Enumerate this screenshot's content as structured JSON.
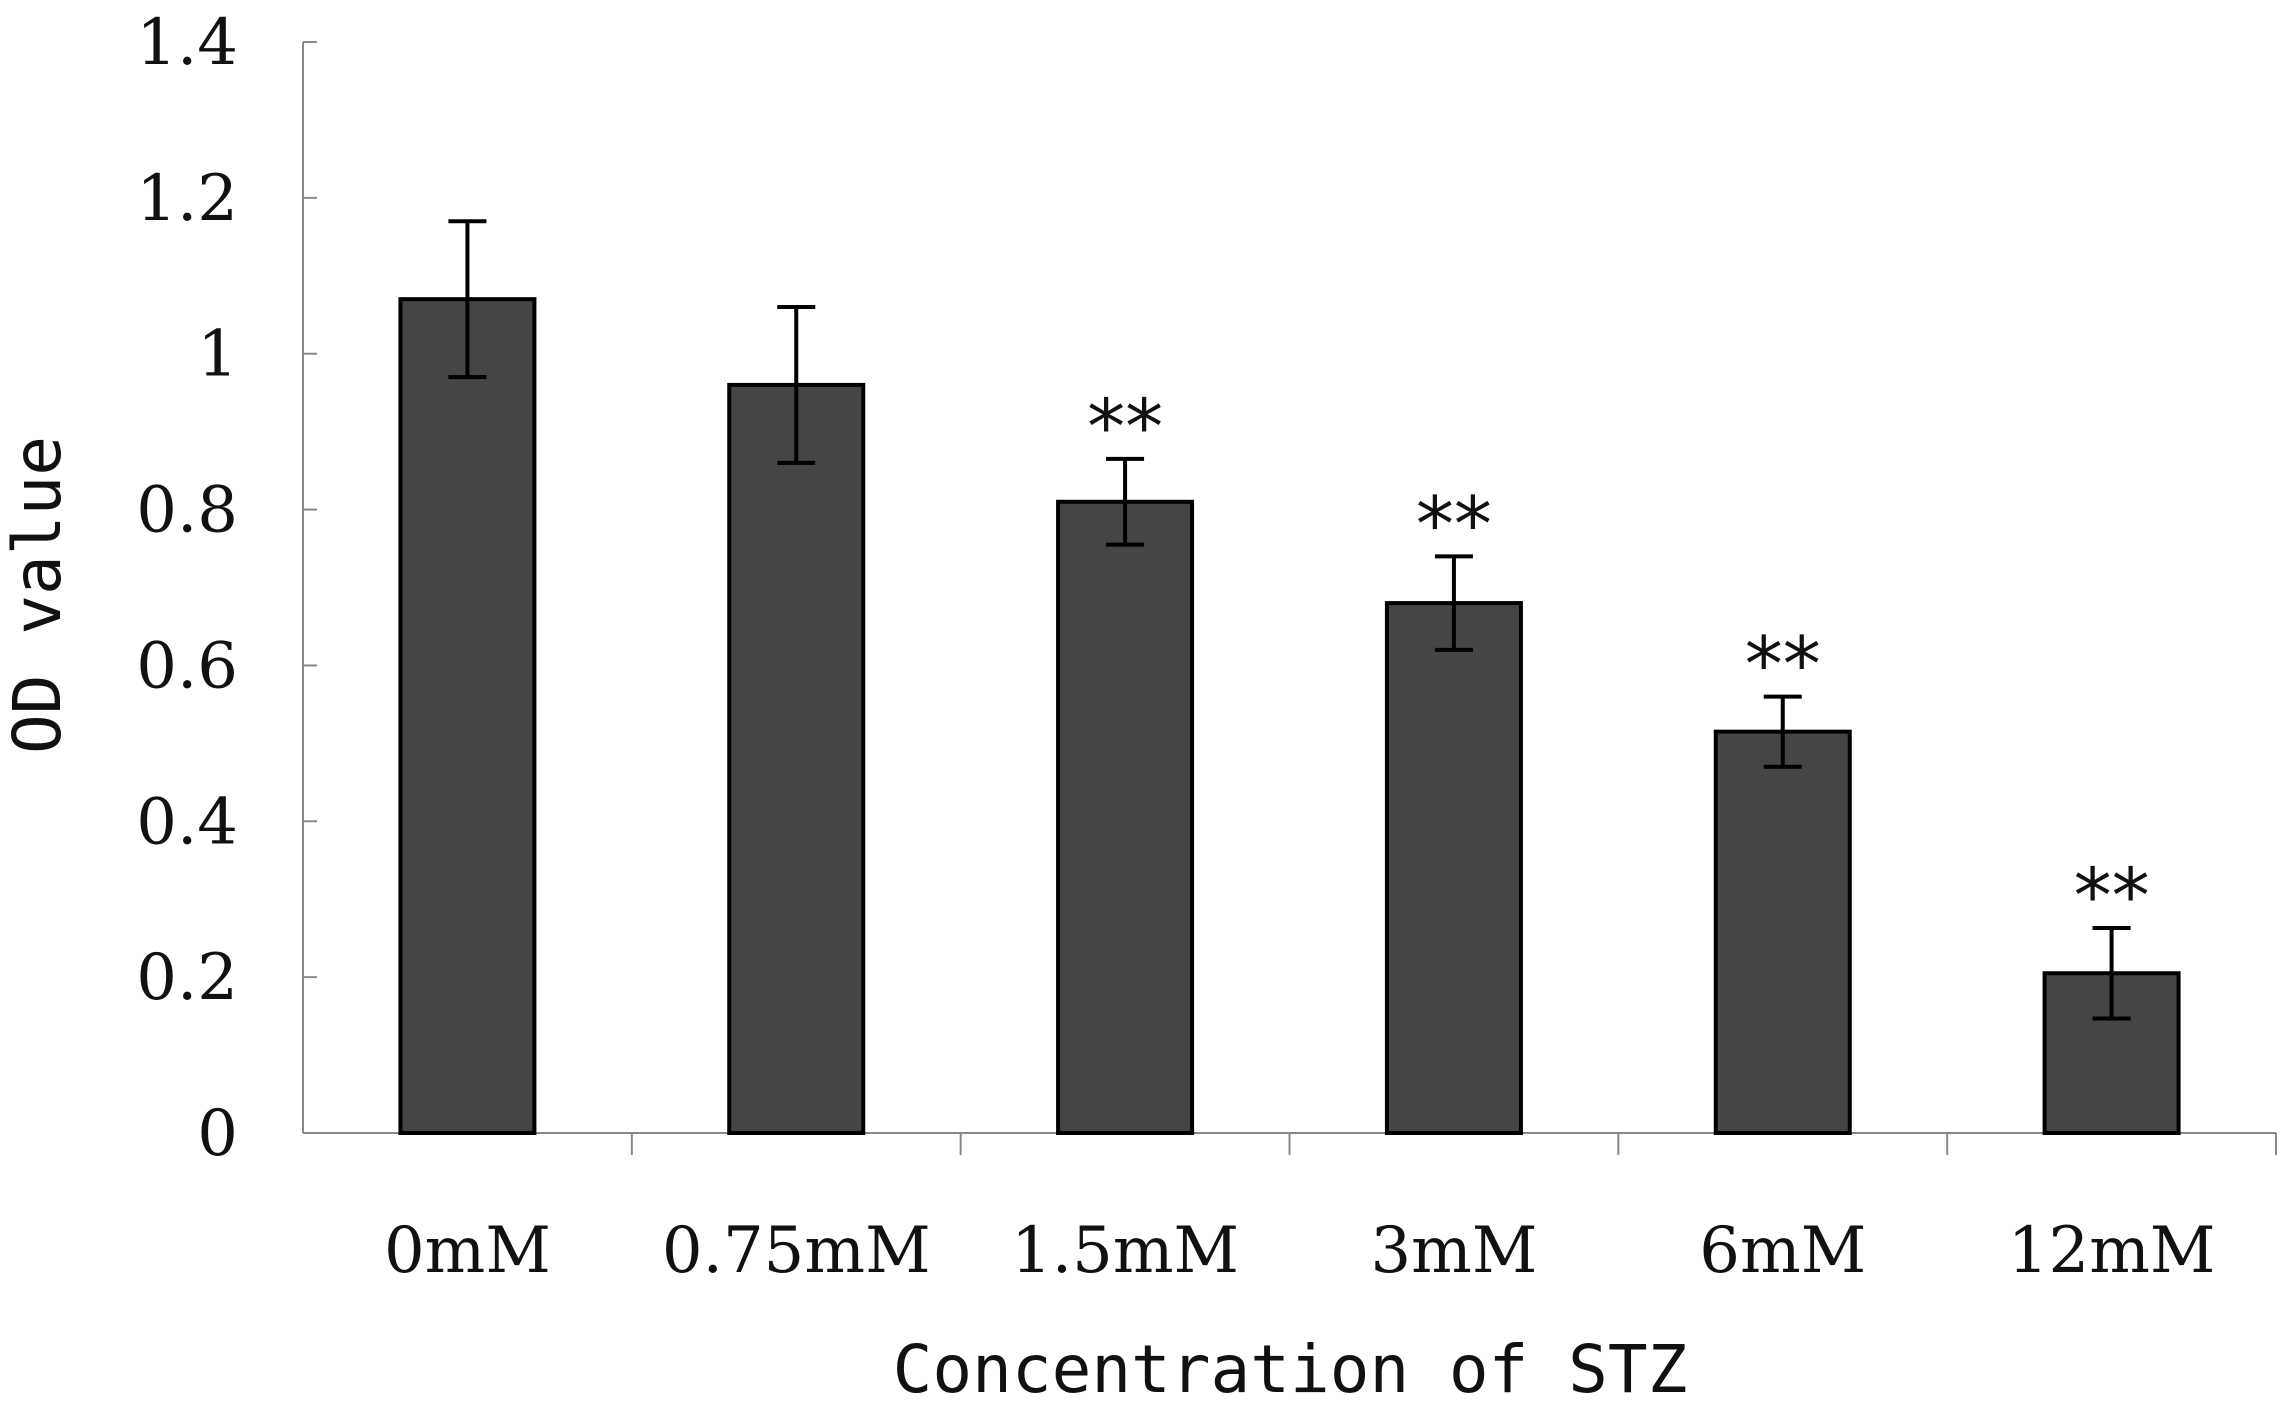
{
  "chart_data": {
    "type": "bar",
    "categories": [
      "0mM",
      "0.75mM",
      "1.5mM",
      "3mM",
      "6mM",
      "12mM"
    ],
    "series": [
      {
        "values": [
          1.07,
          0.96,
          0.81,
          0.68,
          0.515,
          0.205
        ],
        "errors": [
          0.1,
          0.1,
          0.055,
          0.06,
          0.045,
          0.058
        ],
        "annotations": [
          "",
          "",
          "**",
          "**",
          "**",
          "**"
        ]
      }
    ],
    "xlabel": "Concentration of STZ",
    "ylabel": "OD value",
    "ylim": [
      0,
      1.4
    ],
    "yticks": [
      "0",
      "0.2",
      "0.4",
      "0.6",
      "0.8",
      "1",
      "1.2",
      "1.4"
    ],
    "grid": false,
    "legend": "none",
    "colors": {
      "bar": "#454545",
      "edge": "#000000",
      "axis": "#888888"
    }
  }
}
